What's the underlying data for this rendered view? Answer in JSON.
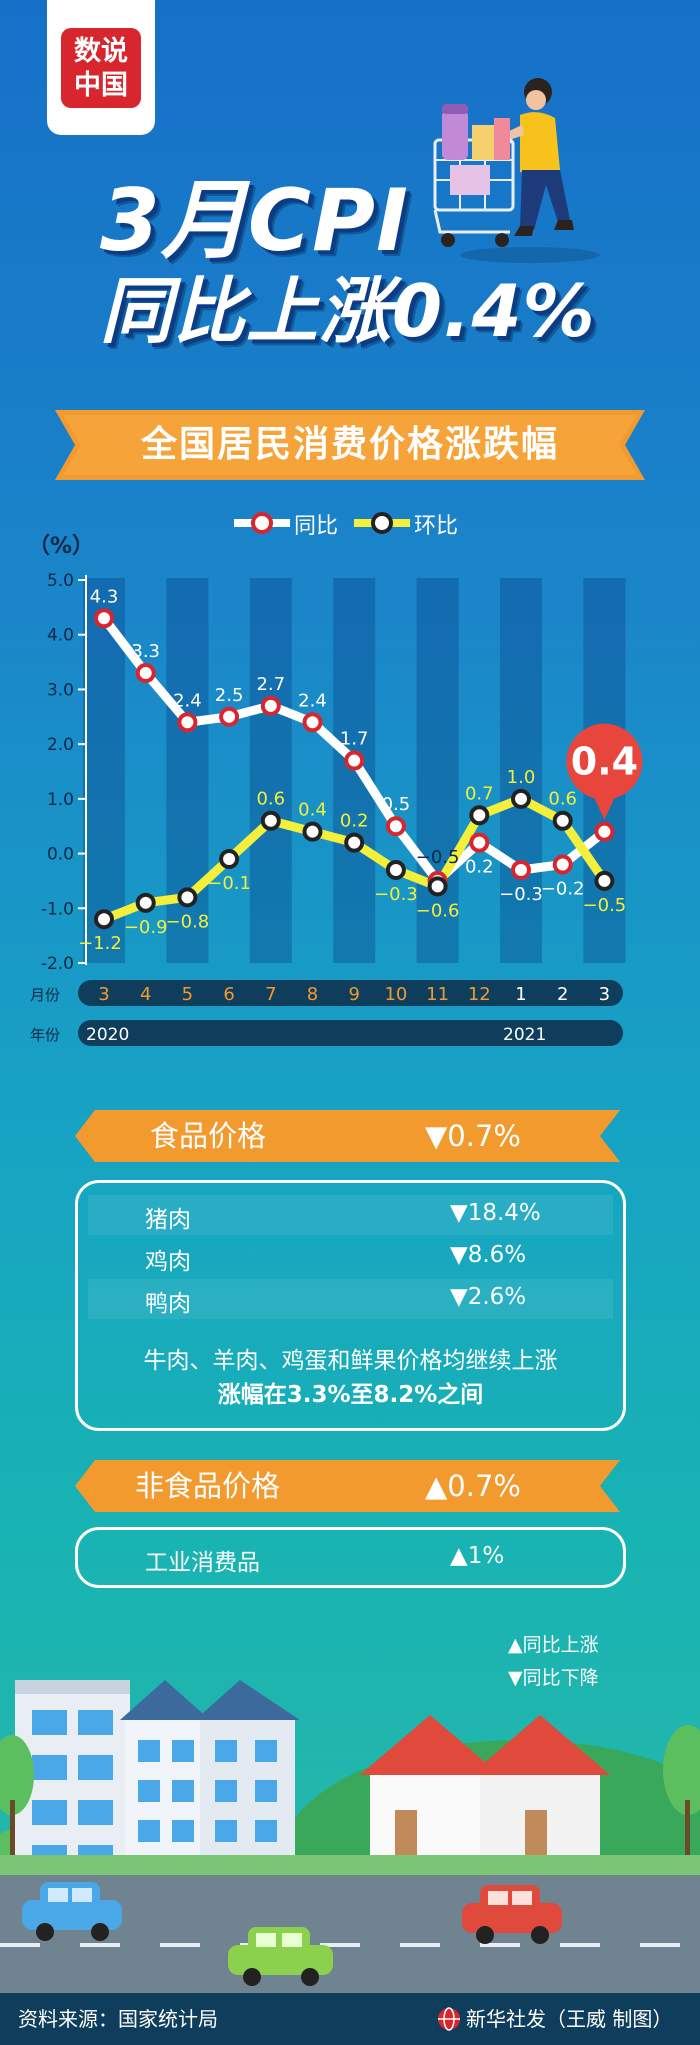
{
  "logo": {
    "line1": "数说",
    "line2": "中国"
  },
  "headline": {
    "line1": "3月CPI",
    "line2": "同比上涨0.4%"
  },
  "ribbon": {
    "title": "全国居民消费价格涨跌幅"
  },
  "colors": {
    "yoy_line": "#ffffff",
    "yoy_marker": "#d8262e",
    "mom_line": "#f3ef3a",
    "mom_marker": "#222222",
    "accent_orange": "#f29a2e",
    "callout_red": "#e8453c"
  },
  "chart_data": {
    "type": "line",
    "ylabel": "（%）",
    "ylim": [
      -2.0,
      5.0
    ],
    "yticks": [
      "5.0",
      "4.0",
      "3.0",
      "2.0",
      "1.0",
      "0.0",
      "-1.0",
      "-2.0"
    ],
    "month_axis_label": "月份",
    "year_axis_label": "年份",
    "categories": [
      "3",
      "4",
      "5",
      "6",
      "7",
      "8",
      "9",
      "10",
      "11",
      "12",
      "1",
      "2",
      "3"
    ],
    "years": [
      {
        "label": "2020",
        "start_index": 0
      },
      {
        "label": "2021",
        "start_index": 10
      }
    ],
    "series": [
      {
        "name": "同比",
        "values": [
          4.3,
          3.3,
          2.4,
          2.5,
          2.7,
          2.4,
          1.7,
          0.5,
          -0.5,
          0.2,
          -0.3,
          -0.2,
          0.4
        ],
        "labels": [
          "4.3",
          "3.3",
          "2.4",
          "2.5",
          "2.7",
          "2.4",
          "1.7",
          "0.5",
          "−0.5",
          "0.2",
          "−0.3",
          "−0.2",
          ""
        ]
      },
      {
        "name": "环比",
        "values": [
          -1.2,
          -0.9,
          -0.8,
          -0.1,
          0.6,
          0.4,
          0.2,
          -0.3,
          -0.6,
          0.7,
          1.0,
          0.6,
          -0.5
        ],
        "labels": [
          "−1.2",
          "−0.9",
          "−0.8",
          "−0.1",
          "0.6",
          "0.4",
          "0.2",
          "−0.3",
          "−0.6",
          "0.7",
          "1.0",
          "0.6",
          "−0.5"
        ]
      }
    ],
    "callout": "0.4"
  },
  "food": {
    "title": "食品价格",
    "change": "▼0.7%",
    "items": [
      {
        "name": "猪肉",
        "change": "▼18.4%"
      },
      {
        "name": "鸡肉",
        "change": "▼8.6%"
      },
      {
        "name": "鸭肉",
        "change": "▼2.6%"
      }
    ],
    "note_line1": "牛肉、羊肉、鸡蛋和鲜果价格均继续上涨",
    "note_line2": "涨幅在3.3%至8.2%之间"
  },
  "nonfood": {
    "title": "非食品价格",
    "change": "▲0.7%",
    "items": [
      {
        "name": "工业消费品",
        "change": "▲1%"
      }
    ]
  },
  "symbol_legend": {
    "up": "▲同比上涨",
    "down": "▼同比下降"
  },
  "footer": {
    "source": "资料来源：国家统计局",
    "credit": "新华社发（王威 制图）"
  }
}
